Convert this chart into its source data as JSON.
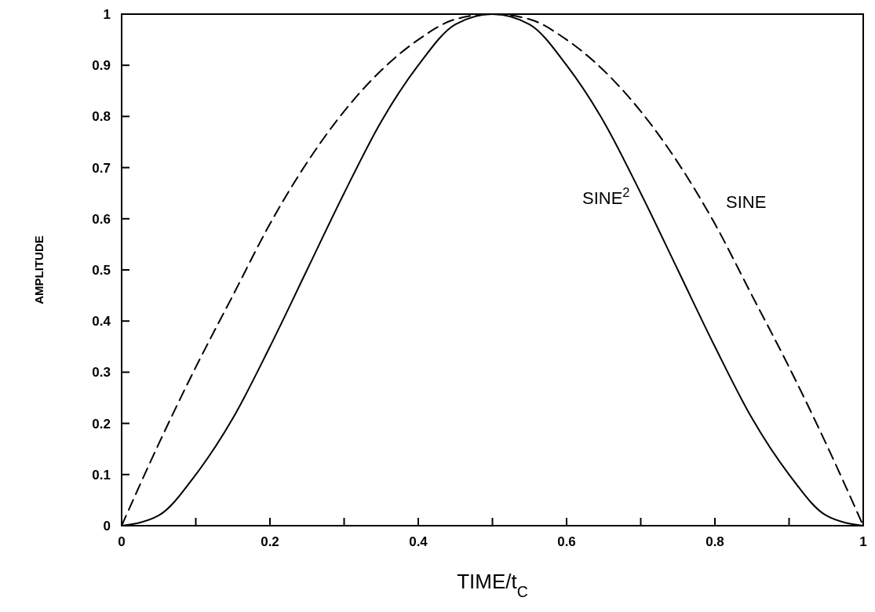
{
  "chart_data": {
    "type": "line",
    "xlabel": "TIME/t$_{C}$",
    "ylabel": "AMPLITUDE",
    "x": [
      0,
      0.05,
      0.1,
      0.15,
      0.2,
      0.25,
      0.3,
      0.35,
      0.4,
      0.45,
      0.5,
      0.55,
      0.6,
      0.65,
      0.7,
      0.75,
      0.8,
      0.85,
      0.9,
      0.95,
      1
    ],
    "series": [
      {
        "name": "SINE",
        "color": "#000000",
        "line_style": "dashed",
        "values": [
          0,
          0.16,
          0.31,
          0.45,
          0.59,
          0.71,
          0.81,
          0.89,
          0.95,
          0.99,
          1,
          0.99,
          0.95,
          0.89,
          0.81,
          0.71,
          0.59,
          0.45,
          0.31,
          0.16,
          0
        ]
      },
      {
        "name": "SINE$^{2}$",
        "color": "#000000",
        "line_style": "solid",
        "values": [
          0,
          0.02,
          0.1,
          0.21,
          0.35,
          0.5,
          0.65,
          0.79,
          0.9,
          0.98,
          1,
          0.98,
          0.9,
          0.79,
          0.65,
          0.5,
          0.35,
          0.21,
          0.1,
          0.02,
          0
        ]
      }
    ],
    "xlim": [
      0,
      1
    ],
    "ylim": [
      0,
      1
    ],
    "xticks": [
      0,
      {
        "value": 0.1,
        "label": null
      },
      0.2,
      {
        "value": 0.3,
        "label": null
      },
      0.4,
      {
        "value": 0.5,
        "label": null
      },
      0.6,
      {
        "value": 0.7,
        "label": null
      },
      0.8,
      {
        "value": 0.9,
        "label": null
      },
      1
    ],
    "yticks": [
      0,
      0.1,
      0.2,
      0.3,
      0.4,
      0.5,
      0.6,
      0.7,
      0.8,
      0.9,
      1
    ],
    "grid": false
  }
}
